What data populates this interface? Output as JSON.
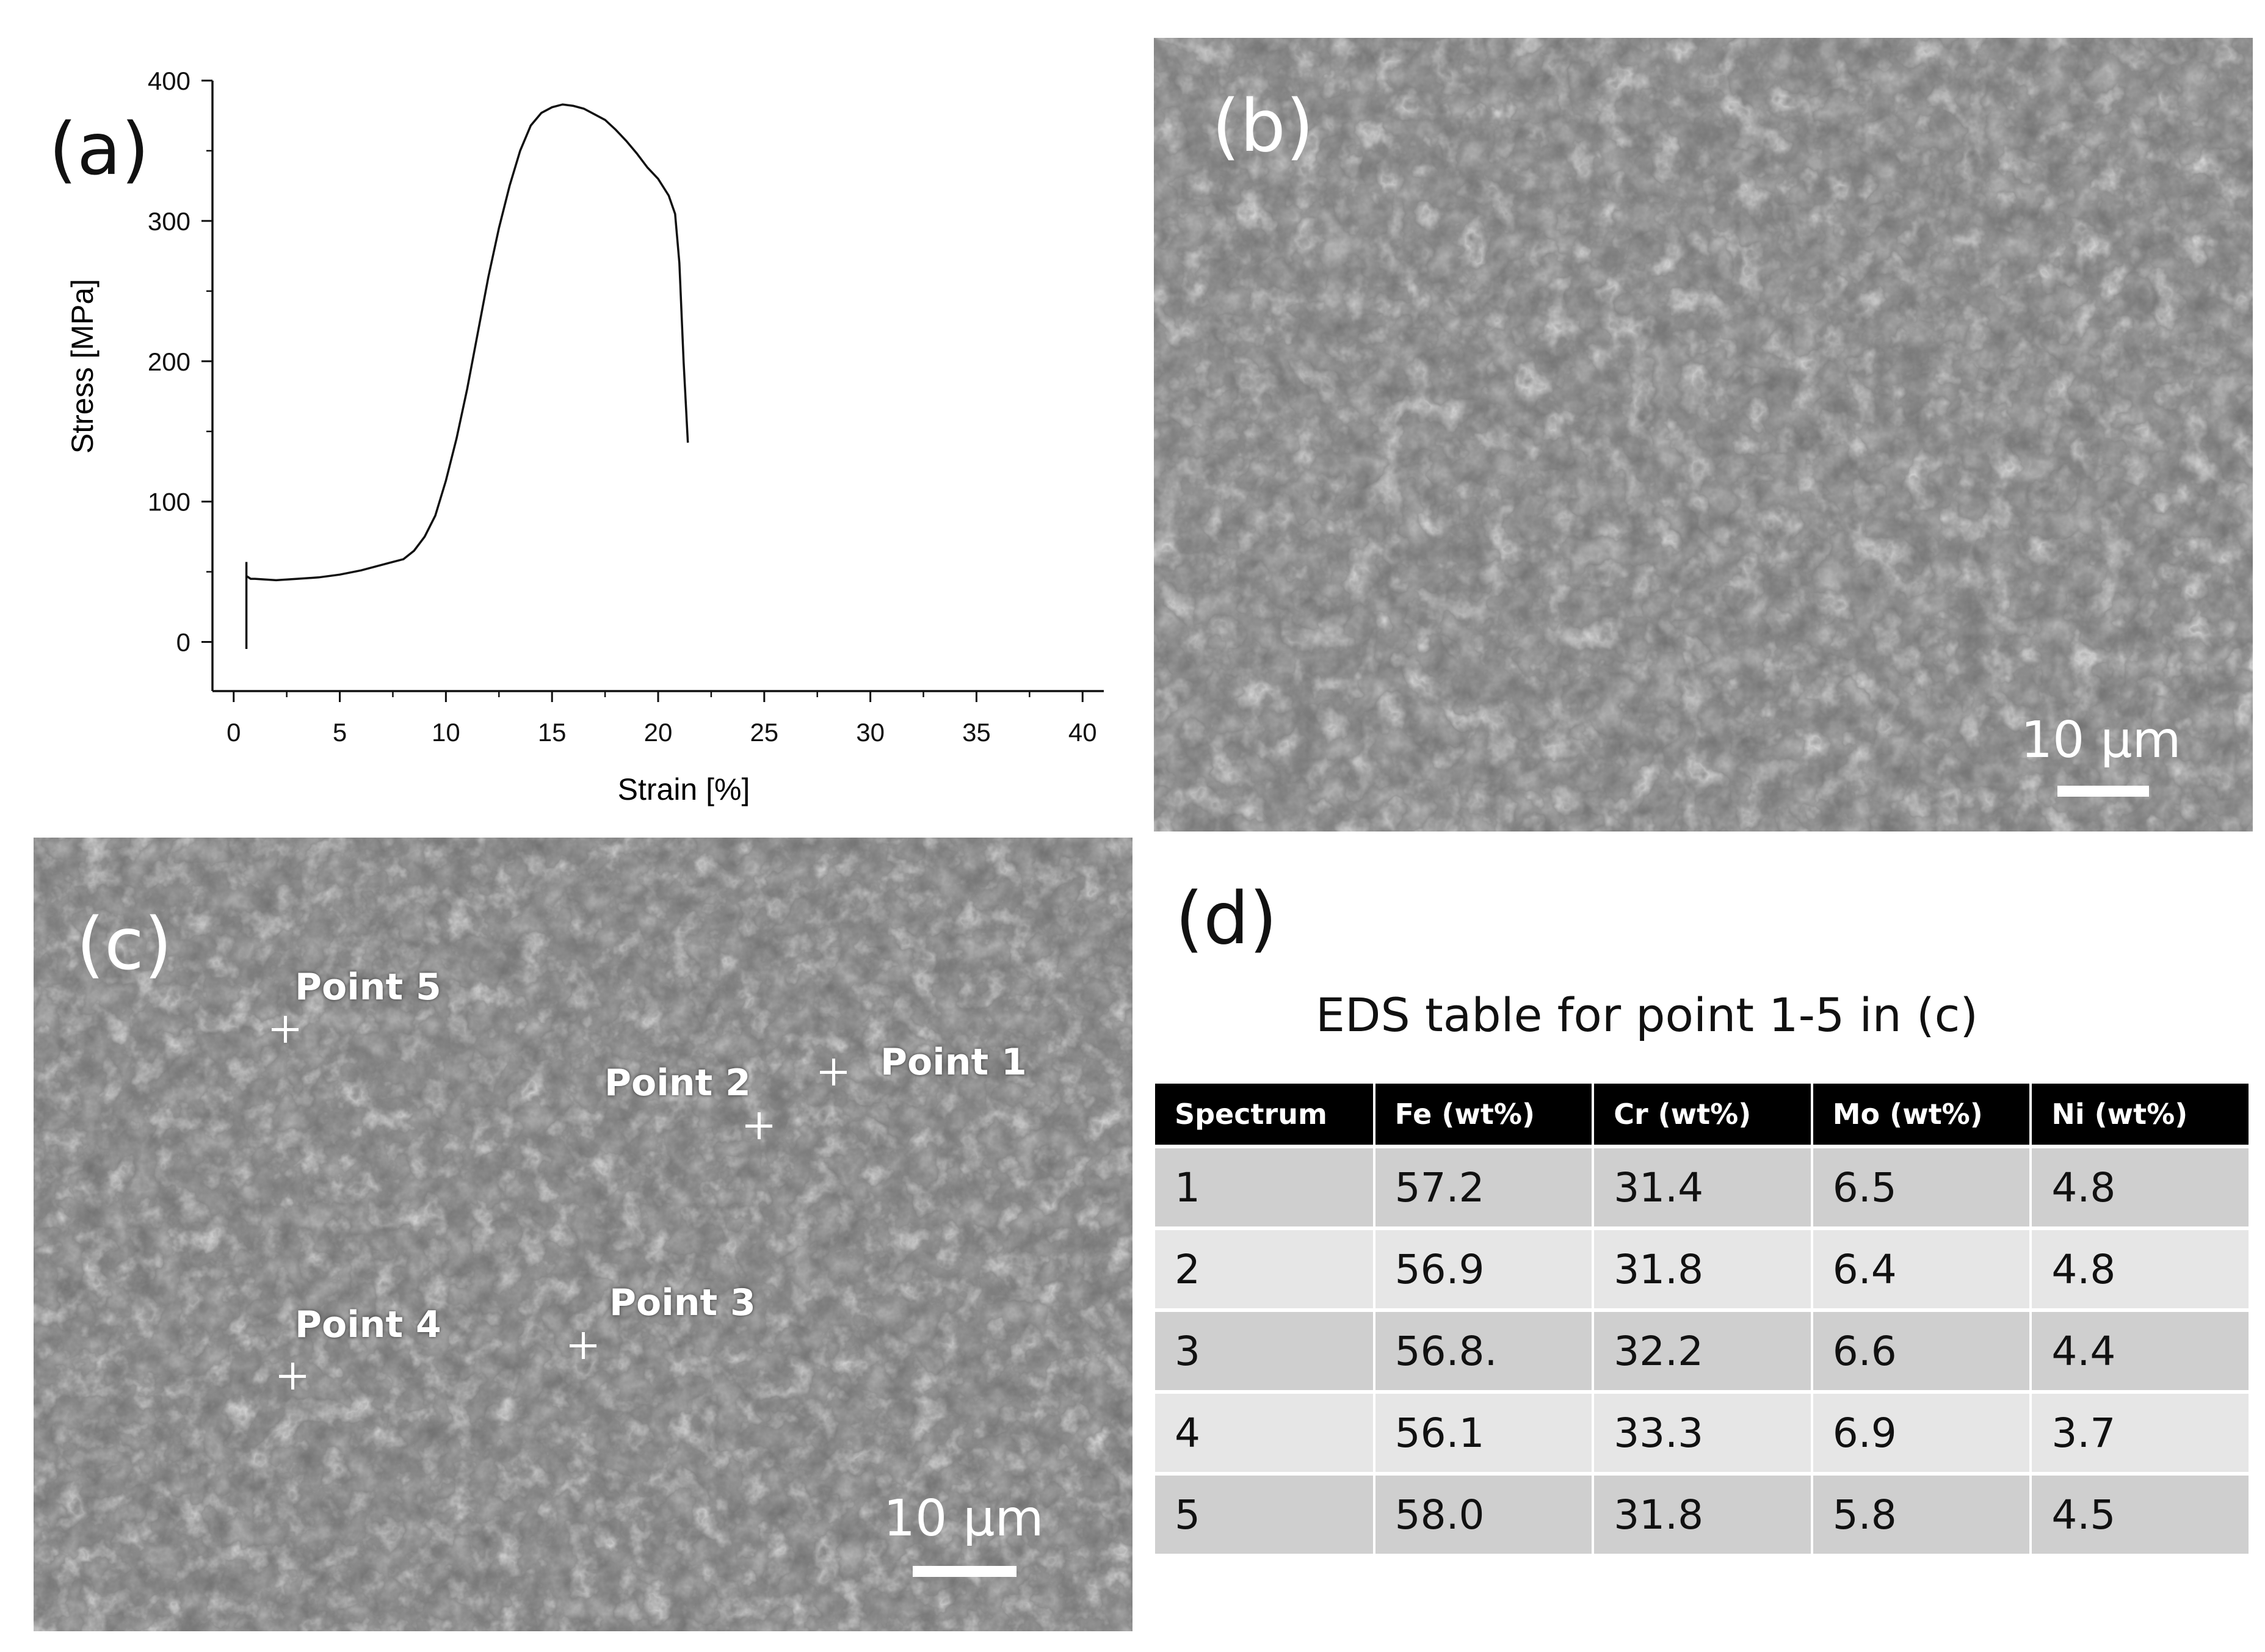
{
  "panels": {
    "a": "(a)",
    "b": "(b)",
    "c": "(c)",
    "d": "(d)"
  },
  "chart_data": {
    "type": "line",
    "xlabel": "Strain [%]",
    "ylabel": "Stress [MPa]",
    "xlim": [
      -1,
      41
    ],
    "ylim": [
      -35,
      400
    ],
    "xticks": [
      0,
      5,
      10,
      15,
      20,
      25,
      30,
      35,
      40
    ],
    "yticks": [
      0,
      100,
      200,
      300,
      400
    ],
    "grid": false,
    "series": [
      {
        "x": [
          0.6,
          0.6,
          0.6,
          0.8,
          1,
          2,
          3,
          4,
          5,
          6,
          7,
          8,
          8.5,
          9,
          9.5,
          10,
          10.5,
          11,
          11.5,
          12,
          12.5,
          13,
          13.5,
          14,
          14.5,
          15,
          15.5,
          16,
          16.5,
          17,
          17.5,
          18,
          18.5,
          19,
          19.5,
          20,
          20.5,
          20.8,
          21,
          21.2,
          21.4
        ],
        "y": [
          -5,
          57,
          47,
          45,
          45,
          44,
          45,
          46,
          48,
          51,
          55,
          59,
          65,
          75,
          90,
          115,
          145,
          180,
          220,
          260,
          295,
          325,
          350,
          368,
          377,
          381,
          383,
          382,
          380,
          376,
          372,
          365,
          357,
          348,
          338,
          330,
          318,
          305,
          270,
          200,
          142
        ]
      }
    ]
  },
  "scale_bars": {
    "b": "10 µm",
    "c": "10 µm"
  },
  "points": [
    {
      "label": "Point 1"
    },
    {
      "label": "Point 2"
    },
    {
      "label": "Point 3"
    },
    {
      "label": "Point 4"
    },
    {
      "label": "Point 5"
    }
  ],
  "table": {
    "title": "EDS table for point 1-5 in (c)",
    "headers": [
      "Spectrum",
      "Fe (wt%)",
      "Cr (wt%)",
      "Mo (wt%)",
      "Ni (wt%)"
    ],
    "rows": [
      [
        "1",
        "57.2",
        "31.4",
        "6.5",
        "4.8"
      ],
      [
        "2",
        "56.9",
        "31.8",
        "6.4",
        "4.8"
      ],
      [
        "3",
        "56.8.",
        "32.2",
        "6.6",
        "4.4"
      ],
      [
        "4",
        "56.1",
        "33.3",
        "6.9",
        "3.7"
      ],
      [
        "5",
        "58.0",
        "31.8",
        "5.8",
        "4.5"
      ]
    ]
  }
}
